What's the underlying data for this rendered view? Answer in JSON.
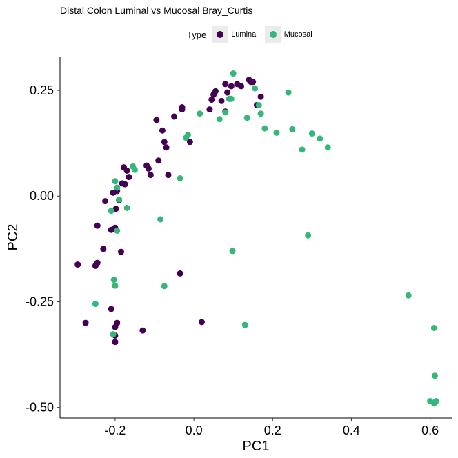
{
  "chart_data": {
    "type": "scatter",
    "title": "Distal Colon Luminal vs Mucosal Bray_Curtis",
    "xlabel": "PC1",
    "ylabel": "PC2",
    "xlim": [
      -0.34,
      0.655
    ],
    "ylim": [
      -0.525,
      0.33
    ],
    "xticks": [
      -0.2,
      0.0,
      0.2,
      0.4,
      0.6
    ],
    "xtick_labels": [
      "-0.2",
      "0.0",
      "0.2",
      "0.4",
      "0.6"
    ],
    "yticks": [
      -0.5,
      -0.25,
      0.0,
      0.25
    ],
    "ytick_labels": [
      "-0.50",
      "-0.25",
      "0.00",
      "0.25"
    ],
    "grid": false,
    "legend": {
      "title": "Type",
      "position": "top"
    },
    "series": [
      {
        "name": "Luminal",
        "color": "#440154",
        "points": [
          [
            -0.295,
            -0.162
          ],
          [
            -0.275,
            -0.3
          ],
          [
            -0.25,
            -0.165
          ],
          [
            -0.245,
            -0.158
          ],
          [
            -0.245,
            -0.07
          ],
          [
            -0.23,
            -0.125
          ],
          [
            -0.225,
            -0.012
          ],
          [
            -0.21,
            -0.267
          ],
          [
            -0.21,
            -0.08
          ],
          [
            -0.205,
            0.008
          ],
          [
            -0.2,
            -0.33
          ],
          [
            -0.2,
            -0.345
          ],
          [
            -0.2,
            -0.31
          ],
          [
            -0.2,
            -0.075
          ],
          [
            -0.198,
            -0.03
          ],
          [
            -0.195,
            -0.3
          ],
          [
            -0.195,
            0.012
          ],
          [
            -0.19,
            -0.01
          ],
          [
            -0.185,
            -0.132
          ],
          [
            -0.182,
            0.03
          ],
          [
            -0.178,
            0.068
          ],
          [
            -0.175,
            0.028
          ],
          [
            -0.17,
            0.06
          ],
          [
            -0.165,
            0.045
          ],
          [
            -0.13,
            -0.318
          ],
          [
            -0.12,
            0.072
          ],
          [
            -0.115,
            0.065
          ],
          [
            -0.11,
            0.05
          ],
          [
            -0.095,
            0.18
          ],
          [
            -0.09,
            0.084
          ],
          [
            -0.08,
            0.155
          ],
          [
            -0.075,
            0.128
          ],
          [
            -0.07,
            0.115
          ],
          [
            -0.065,
            0.05
          ],
          [
            -0.05,
            0.188
          ],
          [
            -0.035,
            -0.183
          ],
          [
            -0.03,
            0.205
          ],
          [
            -0.03,
            0.21
          ],
          [
            -0.01,
            0.128
          ],
          [
            0.02,
            -0.298
          ],
          [
            0.04,
            0.205
          ],
          [
            0.045,
            0.228
          ],
          [
            0.05,
            0.24
          ],
          [
            0.055,
            0.248
          ],
          [
            0.07,
            0.225
          ],
          [
            0.08,
            0.265
          ],
          [
            0.08,
            0.2
          ],
          [
            0.085,
            0.245
          ],
          [
            0.09,
            0.23
          ],
          [
            0.095,
            0.26
          ],
          [
            0.11,
            0.265
          ],
          [
            0.12,
            0.26
          ],
          [
            0.14,
            0.275
          ],
          [
            0.145,
            0.27
          ],
          [
            0.15,
            0.27
          ],
          [
            0.16,
            0.215
          ],
          [
            0.17,
            0.235
          ]
        ]
      },
      {
        "name": "Mucosal",
        "color": "#35b779",
        "points": [
          [
            -0.25,
            -0.255
          ],
          [
            -0.21,
            -0.035
          ],
          [
            -0.205,
            -0.327
          ],
          [
            -0.203,
            -0.198
          ],
          [
            -0.2,
            0.035
          ],
          [
            -0.2,
            -0.212
          ],
          [
            -0.195,
            0.02
          ],
          [
            -0.195,
            -0.082
          ],
          [
            -0.19,
            -0.008
          ],
          [
            -0.17,
            -0.028
          ],
          [
            -0.155,
            0.07
          ],
          [
            -0.15,
            0.062
          ],
          [
            -0.085,
            -0.055
          ],
          [
            -0.075,
            -0.213
          ],
          [
            -0.035,
            0.042
          ],
          [
            -0.02,
            0.138
          ],
          [
            -0.015,
            0.145
          ],
          [
            0.015,
            0.195
          ],
          [
            0.065,
            0.182
          ],
          [
            0.08,
            0.198
          ],
          [
            0.09,
            0.23
          ],
          [
            0.095,
            0.23
          ],
          [
            0.098,
            -0.13
          ],
          [
            0.1,
            0.29
          ],
          [
            0.13,
            -0.305
          ],
          [
            0.135,
            0.185
          ],
          [
            0.155,
            0.255
          ],
          [
            0.165,
            0.215
          ],
          [
            0.17,
            0.195
          ],
          [
            0.18,
            0.16
          ],
          [
            0.21,
            0.15
          ],
          [
            0.24,
            0.245
          ],
          [
            0.25,
            0.158
          ],
          [
            0.275,
            0.11
          ],
          [
            0.29,
            -0.093
          ],
          [
            0.3,
            0.148
          ],
          [
            0.32,
            0.136
          ],
          [
            0.34,
            0.115
          ],
          [
            0.545,
            -0.235
          ],
          [
            0.6,
            -0.485
          ],
          [
            0.61,
            -0.49
          ],
          [
            0.61,
            -0.312
          ],
          [
            0.612,
            -0.425
          ],
          [
            0.615,
            -0.485
          ]
        ]
      }
    ]
  }
}
